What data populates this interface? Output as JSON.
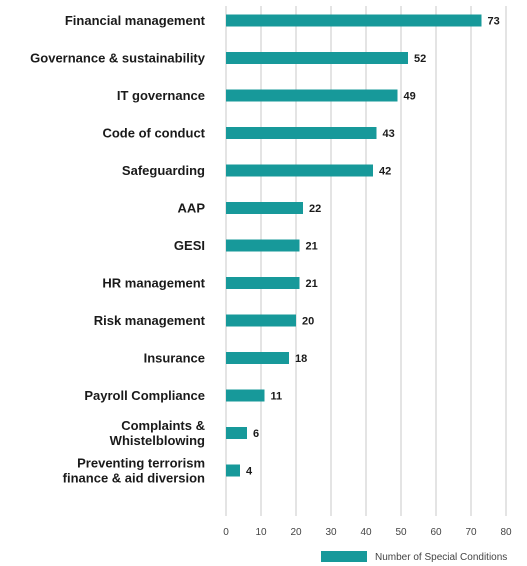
{
  "chart_data": {
    "type": "bar",
    "orientation": "horizontal",
    "categories": [
      "Financial management",
      "Governance & sustainability",
      "IT governance",
      "Code of conduct",
      "Safeguarding",
      "AAP",
      "GESI",
      "HR management",
      "Risk management",
      "Insurance",
      "Payroll Compliance",
      "Complaints & Whistelblowing",
      "Preventing terrorism finance & aid diversion"
    ],
    "category_lines": [
      [
        "Financial management"
      ],
      [
        "Governance & sustainability"
      ],
      [
        "IT governance"
      ],
      [
        "Code of conduct"
      ],
      [
        "Safeguarding"
      ],
      [
        "AAP"
      ],
      [
        "GESI"
      ],
      [
        "HR management"
      ],
      [
        "Risk management"
      ],
      [
        "Insurance"
      ],
      [
        "Payroll Compliance"
      ],
      [
        "Complaints &",
        "Whistelblowing"
      ],
      [
        "Preventing terrorism",
        "finance & aid diversion"
      ]
    ],
    "series": [
      {
        "name": "Number of Special Conditions",
        "values": [
          73,
          52,
          49,
          43,
          42,
          22,
          21,
          21,
          20,
          18,
          11,
          6,
          4
        ]
      }
    ],
    "xlim": [
      0,
      80
    ],
    "xticks": [
      0,
      10,
      20,
      30,
      40,
      50,
      60,
      70,
      80
    ],
    "grid": "vertical",
    "legend": "bottom-right",
    "colors": {
      "bar": "#17999a"
    }
  }
}
